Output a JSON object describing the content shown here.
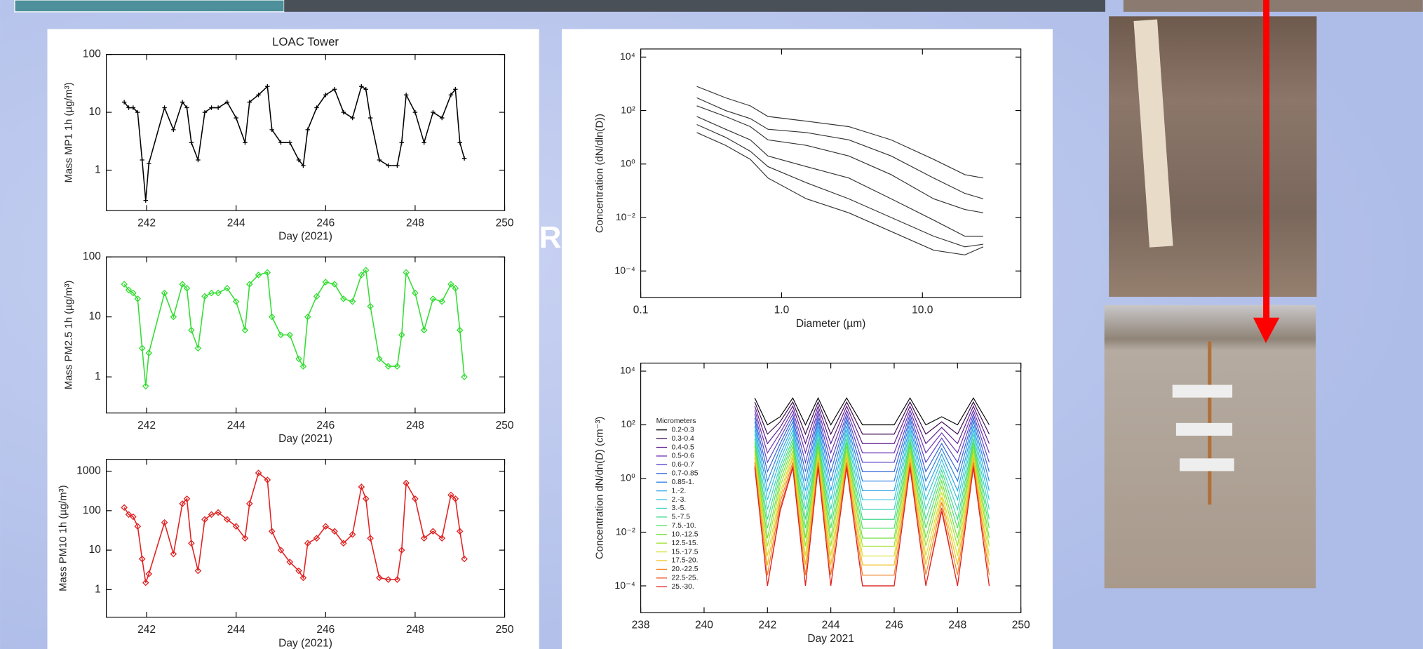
{
  "slide_text": "R",
  "chart_data": [
    {
      "type": "line",
      "title": "LOAC Tower",
      "ylabel": "Mass MP1 1h (µg/m³)",
      "xlabel": "Day (2021)",
      "ylog": true,
      "marker": "plus",
      "color": "#000000",
      "xlim": [
        241.1,
        250
      ],
      "xticks": [
        242,
        244,
        246,
        248,
        250
      ],
      "ylim": [
        0.2,
        100
      ],
      "yticks": [
        1,
        10,
        100
      ],
      "x": [
        241.5,
        241.6,
        241.7,
        241.8,
        241.9,
        241.98,
        242.05,
        242.4,
        242.6,
        242.8,
        242.9,
        243.0,
        243.15,
        243.3,
        243.45,
        243.6,
        243.8,
        244.0,
        244.2,
        244.3,
        244.5,
        244.7,
        244.8,
        245.0,
        245.2,
        245.4,
        245.5,
        245.6,
        245.8,
        246.0,
        246.2,
        246.4,
        246.6,
        246.8,
        246.9,
        247.0,
        247.2,
        247.4,
        247.6,
        247.7,
        247.8,
        248.0,
        248.2,
        248.4,
        248.6,
        248.8,
        248.9,
        249.0,
        249.1
      ],
      "values": [
        15,
        12,
        12,
        10,
        1.5,
        0.3,
        1.3,
        12,
        5,
        15,
        12,
        3,
        1.5,
        10,
        12,
        12,
        15,
        8,
        3,
        15,
        20,
        28,
        5,
        3,
        3,
        1.5,
        1.2,
        5,
        12,
        20,
        25,
        10,
        8,
        28,
        25,
        8,
        1.5,
        1.2,
        1.2,
        3,
        20,
        10,
        3,
        10,
        8,
        20,
        25,
        3,
        1.6
      ]
    },
    {
      "type": "line",
      "ylabel": "Mass PM2.5 1h (µg/m³)",
      "xlabel": "Day (2021)",
      "ylog": true,
      "marker": "diamond",
      "color": "#33dd33",
      "xlim": [
        241.1,
        250
      ],
      "xticks": [
        242,
        244,
        246,
        248,
        250
      ],
      "ylim": [
        0.25,
        100
      ],
      "yticks": [
        1,
        10,
        100
      ],
      "x": [
        241.5,
        241.6,
        241.7,
        241.8,
        241.9,
        241.98,
        242.05,
        242.4,
        242.6,
        242.8,
        242.9,
        243.0,
        243.15,
        243.3,
        243.45,
        243.6,
        243.8,
        244.0,
        244.2,
        244.3,
        244.5,
        244.7,
        244.8,
        245.0,
        245.2,
        245.4,
        245.5,
        245.6,
        245.8,
        246.0,
        246.2,
        246.4,
        246.6,
        246.8,
        246.9,
        247.0,
        247.2,
        247.4,
        247.6,
        247.7,
        247.8,
        248.0,
        248.2,
        248.4,
        248.6,
        248.8,
        248.9,
        249.0,
        249.1
      ],
      "values": [
        35,
        28,
        25,
        20,
        3,
        0.7,
        2.5,
        25,
        10,
        35,
        30,
        6,
        3,
        22,
        25,
        25,
        30,
        18,
        6,
        35,
        50,
        55,
        10,
        5,
        5,
        2,
        1.5,
        10,
        22,
        38,
        35,
        20,
        18,
        50,
        60,
        15,
        2,
        1.5,
        1.5,
        5,
        55,
        25,
        6,
        20,
        18,
        35,
        30,
        6,
        1
      ]
    },
    {
      "type": "line",
      "ylabel": "Mass PM10 1h (µg/m³)",
      "xlabel": "Day (2021)",
      "ylog": true,
      "marker": "diamond",
      "color": "#e02020",
      "xlim": [
        241.1,
        250
      ],
      "xticks": [
        242,
        244,
        246,
        248,
        250
      ],
      "ylim": [
        0.2,
        2000
      ],
      "yticks": [
        1,
        10,
        100,
        1000
      ],
      "x": [
        241.5,
        241.6,
        241.7,
        241.8,
        241.9,
        241.98,
        242.05,
        242.4,
        242.6,
        242.8,
        242.9,
        243.0,
        243.15,
        243.3,
        243.45,
        243.6,
        243.8,
        244.0,
        244.2,
        244.3,
        244.5,
        244.7,
        244.8,
        245.0,
        245.2,
        245.4,
        245.5,
        245.6,
        245.8,
        246.0,
        246.2,
        246.4,
        246.6,
        246.8,
        246.9,
        247.0,
        247.2,
        247.4,
        247.6,
        247.7,
        247.8,
        248.0,
        248.2,
        248.4,
        248.6,
        248.8,
        248.9,
        249.0,
        249.1
      ],
      "values": [
        120,
        80,
        70,
        40,
        6,
        1.5,
        2.5,
        50,
        8,
        150,
        200,
        15,
        3,
        60,
        80,
        90,
        60,
        40,
        20,
        150,
        900,
        600,
        30,
        10,
        5,
        3,
        2,
        15,
        20,
        40,
        30,
        15,
        25,
        400,
        200,
        20,
        2,
        1.8,
        1.8,
        10,
        500,
        200,
        20,
        30,
        20,
        250,
        200,
        30,
        6
      ]
    },
    {
      "type": "line",
      "ylabel": "Concentration (dN/dln(D))",
      "xlabel": "Diameter (µm)",
      "xlog": true,
      "ylog": true,
      "xlim": [
        0.1,
        50
      ],
      "xticks": [
        0.1,
        {
          "value": 1,
          "label": "1.0"
        },
        {
          "value": 10,
          "label": "10.0"
        }
      ],
      "ylim": [
        1e-05,
        20000
      ],
      "yticks": [
        {
          "value": 0.0001,
          "label": "10⁻⁴"
        },
        {
          "value": 0.01,
          "label": "10⁻²"
        },
        {
          "value": 1,
          "label": "10⁰"
        },
        {
          "value": 100,
          "label": "10²"
        },
        {
          "value": 10000,
          "label": "10⁴"
        }
      ],
      "x": [
        0.25,
        0.4,
        0.6,
        0.8,
        1.5,
        3,
        6,
        12,
        20,
        27
      ],
      "series": [
        {
          "color": "#000000",
          "values": [
            800,
            300,
            150,
            60,
            40,
            25,
            8,
            1.5,
            0.4,
            0.3
          ]
        },
        {
          "color": "#000000",
          "values": [
            300,
            100,
            50,
            20,
            15,
            8,
            2,
            0.3,
            0.08,
            0.05
          ]
        },
        {
          "color": "#000000",
          "values": [
            150,
            60,
            25,
            8,
            5,
            2,
            0.4,
            0.05,
            0.02,
            0.015
          ]
        },
        {
          "color": "#000000",
          "values": [
            60,
            20,
            8,
            2,
            0.8,
            0.3,
            0.05,
            0.008,
            0.002,
            0.002
          ]
        },
        {
          "color": "#000000",
          "values": [
            30,
            10,
            3,
            0.8,
            0.2,
            0.05,
            0.01,
            0.002,
            0.0008,
            0.001
          ]
        },
        {
          "color": "#000000",
          "values": [
            15,
            5,
            1.5,
            0.3,
            0.05,
            0.015,
            0.003,
            0.0006,
            0.0004,
            0.0008
          ]
        }
      ]
    },
    {
      "type": "line",
      "ylabel": "Concentration dN/dn(D) (cm⁻³)",
      "xlabel": "Day 2021",
      "ylog": true,
      "legend_title": "Micrometers",
      "xlim": [
        238,
        250
      ],
      "xticks": [
        238,
        240,
        242,
        244,
        246,
        248,
        250
      ],
      "ylim": [
        1e-05,
        20000
      ],
      "yticks": [
        {
          "value": 0.0001,
          "label": "10⁻⁴"
        },
        {
          "value": 0.01,
          "label": "10⁻²"
        },
        {
          "value": 1,
          "label": "10⁰"
        },
        {
          "value": 100,
          "label": "10²"
        },
        {
          "value": 10000,
          "label": "10⁴"
        }
      ],
      "x": [
        241.6,
        242.0,
        242.4,
        242.8,
        243.2,
        243.6,
        244.0,
        244.5,
        245.0,
        245.5,
        246.0,
        246.5,
        247.0,
        247.5,
        248.0,
        248.5,
        249.0
      ],
      "series": [
        {
          "name": "0.2-0.3",
          "color": "#000000",
          "values": [
            1000,
            100,
            200,
            1000,
            100,
            1000,
            100,
            1000,
            100,
            100,
            100,
            1000,
            100,
            200,
            100,
            1000,
            100
          ]
        },
        {
          "name": "0.3-0.4",
          "color": "#3b0a4e",
          "values": [
            710,
            45,
            130,
            710,
            45,
            710,
            45,
            710,
            45,
            45,
            45,
            710,
            45,
            130,
            45,
            710,
            45
          ]
        },
        {
          "name": "0.4-0.5",
          "color": "#5a1a8c",
          "values": [
            500,
            20,
            80,
            500,
            20,
            500,
            20,
            500,
            20,
            20,
            20,
            500,
            20,
            80,
            20,
            500,
            20
          ]
        },
        {
          "name": "0.5-0.6",
          "color": "#6a2fb0",
          "values": [
            350,
            9,
            50,
            350,
            9,
            350,
            9,
            350,
            9,
            9,
            9,
            350,
            9,
            50,
            9,
            350,
            9
          ]
        },
        {
          "name": "0.6-0.7",
          "color": "#5440c8",
          "values": [
            250,
            4,
            32,
            250,
            4,
            250,
            4,
            250,
            4,
            4,
            4,
            250,
            4,
            32,
            4,
            250,
            4
          ]
        },
        {
          "name": "0.7-0.85",
          "color": "#3060d8",
          "values": [
            180,
            1.8,
            20,
            180,
            1.8,
            180,
            1.8,
            180,
            1.8,
            1.8,
            1.8,
            180,
            1.8,
            20,
            1.8,
            180,
            1.8
          ]
        },
        {
          "name": "0.85-1.",
          "color": "#2a7fe0",
          "values": [
            130,
            0.8,
            13,
            130,
            0.8,
            130,
            0.8,
            130,
            0.8,
            0.8,
            0.8,
            130,
            0.8,
            13,
            0.8,
            130,
            0.8
          ]
        },
        {
          "name": "1.-2.",
          "color": "#2aa0e8",
          "values": [
            90,
            0.35,
            8,
            90,
            0.35,
            90,
            0.35,
            90,
            0.35,
            0.35,
            0.35,
            90,
            0.35,
            8,
            0.35,
            90,
            0.35
          ]
        },
        {
          "name": "2.-3.",
          "color": "#30c0e0",
          "values": [
            63,
            0.16,
            5,
            63,
            0.16,
            63,
            0.16,
            63,
            0.16,
            0.16,
            0.16,
            63,
            0.16,
            5,
            0.16,
            63,
            0.16
          ]
        },
        {
          "name": "3.-5.",
          "color": "#40d0c0",
          "values": [
            45,
            0.07,
            3,
            45,
            0.07,
            45,
            0.07,
            45,
            0.07,
            0.07,
            0.07,
            45,
            0.07,
            3,
            0.07,
            45,
            0.07
          ]
        },
        {
          "name": "5.-7.5",
          "color": "#40d890",
          "values": [
            30,
            0.03,
            2,
            30,
            0.03,
            30,
            0.03,
            30,
            0.03,
            0.03,
            0.03,
            30,
            0.03,
            2,
            0.03,
            30,
            0.03
          ]
        },
        {
          "name": "7.5.-10.",
          "color": "#50e060",
          "values": [
            22,
            0.014,
            1.3,
            22,
            0.014,
            22,
            0.014,
            22,
            0.014,
            0.014,
            0.014,
            22,
            0.014,
            1.3,
            0.014,
            22,
            0.014
          ]
        },
        {
          "name": "10.-12.5",
          "color": "#70e040",
          "values": [
            16,
            0.006,
            0.8,
            16,
            0.006,
            16,
            0.006,
            16,
            0.006,
            0.006,
            0.006,
            16,
            0.006,
            0.8,
            0.006,
            16,
            0.006
          ]
        },
        {
          "name": "12.5-15.",
          "color": "#a0e030",
          "values": [
            11,
            0.003,
            0.5,
            11,
            0.003,
            11,
            0.003,
            11,
            0.003,
            0.003,
            0.003,
            11,
            0.003,
            0.5,
            0.003,
            11,
            0.003
          ]
        },
        {
          "name": "15.-17.5",
          "color": "#d8e030",
          "values": [
            8,
            0.0013,
            0.3,
            8,
            0.0013,
            8,
            0.0013,
            8,
            0.0013,
            0.0013,
            0.0013,
            8,
            0.0013,
            0.3,
            0.0013,
            8,
            0.0013
          ]
        },
        {
          "name": "17.5-20.",
          "color": "#f0c020",
          "values": [
            6,
            0.0006,
            0.2,
            6,
            0.0006,
            6,
            0.0006,
            6,
            0.0006,
            0.0006,
            0.0006,
            6,
            0.0006,
            0.2,
            0.0006,
            6,
            0.0006
          ]
        },
        {
          "name": "20.-22.5",
          "color": "#f08020",
          "values": [
            4,
            0.00025,
            0.13,
            4,
            0.00025,
            4,
            0.00025,
            4,
            0.00025,
            0.00025,
            0.00025,
            4,
            0.00025,
            0.13,
            0.00025,
            4,
            0.00025
          ]
        },
        {
          "name": "22.5-25.",
          "color": "#e85020",
          "values": [
            3,
            0.0001,
            0.08,
            3,
            0.0001,
            3,
            0.0001,
            3,
            0.0001,
            0.0001,
            0.0001,
            3,
            0.0001,
            0.08,
            0.0001,
            3,
            0.0001
          ]
        },
        {
          "name": "25.-30.",
          "color": "#e02020",
          "values": [
            2.5,
            0.0001,
            0.06,
            2.5,
            0.0001,
            2.5,
            0.0001,
            2.5,
            0.0001,
            0.0001,
            0.0001,
            2.5,
            0.0001,
            0.06,
            0.0001,
            2.5,
            0.0001
          ]
        }
      ]
    }
  ]
}
